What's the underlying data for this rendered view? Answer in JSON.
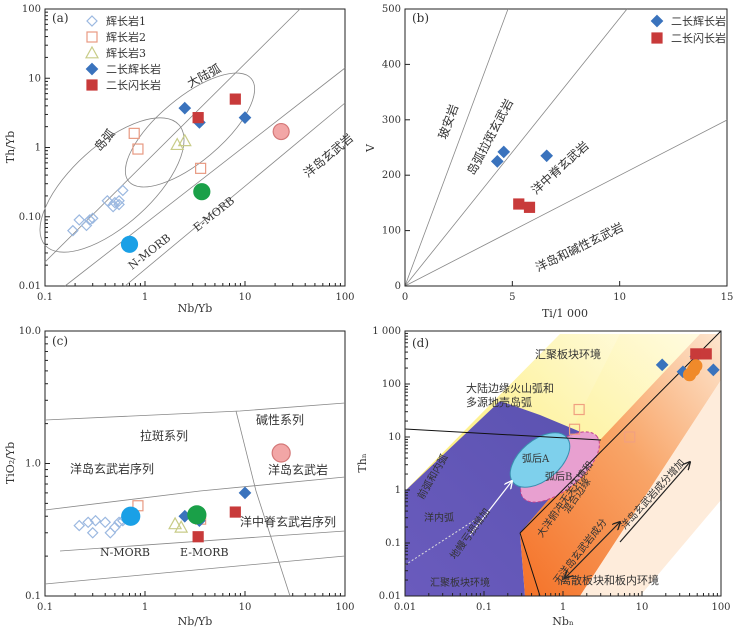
{
  "chart_data": [
    {
      "type": "scatter",
      "panel": "(a)",
      "xlabel": "Nb/Yb",
      "ylabel": "Th/Yb",
      "log_x": true,
      "log_y": true,
      "xlim": [
        0.1,
        100
      ],
      "ylim": [
        0.01,
        100
      ],
      "x_ticks": [
        "0.1",
        "1",
        "10",
        "100"
      ],
      "y_ticks": [
        "0.01",
        "0.10",
        "1",
        "10",
        "100"
      ],
      "legend": [
        "辉长岩1",
        "辉长岩2",
        "辉长岩3",
        "二长辉长岩",
        "二长闪长岩"
      ],
      "annotations": [
        "岛弧",
        "大陆弧",
        "洋岛玄武岩",
        "E-MORB",
        "N-MORB"
      ],
      "series": [
        {
          "name": "辉长岩1",
          "points": [
            [
              0.19,
              0.063
            ],
            [
              0.22,
              0.09
            ],
            [
              0.26,
              0.075
            ],
            [
              0.28,
              0.09
            ],
            [
              0.3,
              0.095
            ],
            [
              0.42,
              0.17
            ],
            [
              0.5,
              0.16
            ],
            [
              0.48,
              0.14
            ],
            [
              0.55,
              0.17
            ],
            [
              0.6,
              0.24
            ],
            [
              0.55,
              0.15
            ]
          ]
        },
        {
          "name": "辉长岩2",
          "points": [
            [
              0.78,
              1.6
            ],
            [
              0.85,
              0.95
            ],
            [
              3.6,
              0.5
            ]
          ]
        },
        {
          "name": "辉长岩3",
          "points": [
            [
              2.1,
              1.1
            ],
            [
              2.5,
              1.25
            ]
          ]
        },
        {
          "name": "二长辉长岩",
          "points": [
            [
              2.5,
              3.7
            ],
            [
              3.5,
              2.3
            ],
            [
              10,
              2.7
            ]
          ]
        },
        {
          "name": "二长闪长岩",
          "points": [
            [
              3.4,
              2.7
            ],
            [
              8,
              5
            ]
          ]
        },
        {
          "name": "N-MORB",
          "points": [
            [
              0.7,
              0.04
            ]
          ]
        },
        {
          "name": "E-MORB",
          "points": [
            [
              3.7,
              0.23
            ]
          ]
        },
        {
          "name": "洋岛玄武岩",
          "points": [
            [
              23,
              1.7
            ]
          ]
        }
      ]
    },
    {
      "type": "scatter",
      "panel": "(b)",
      "xlabel": "Ti/1 000",
      "ylabel": "V",
      "xlim": [
        0,
        15
      ],
      "ylim": [
        0,
        500
      ],
      "x_ticks": [
        "0",
        "5",
        "10",
        "15"
      ],
      "y_ticks": [
        "0",
        "100",
        "200",
        "300",
        "400",
        "500"
      ],
      "legend": [
        "二长辉长岩",
        "二长闪长岩"
      ],
      "annotations": [
        "玻安岩",
        "岛弧拉斑玄武岩",
        "洋中脊玄武岩",
        "洋岛和碱性玄武岩"
      ],
      "series": [
        {
          "name": "二长辉长岩",
          "points": [
            [
              4.3,
              225
            ],
            [
              4.6,
              242
            ],
            [
              6.6,
              235
            ]
          ]
        },
        {
          "name": "二长闪长岩",
          "points": [
            [
              5.3,
              148
            ],
            [
              5.8,
              142
            ]
          ]
        }
      ]
    },
    {
      "type": "scatter",
      "panel": "(c)",
      "xlabel": "Nb/Yb",
      "ylabel": "TiO₂/Yb",
      "log_x": true,
      "log_y": true,
      "xlim": [
        0.1,
        100
      ],
      "ylim": [
        0.1,
        10
      ],
      "x_ticks": [
        "0.1",
        "1",
        "10",
        "100"
      ],
      "y_ticks": [
        "0.1",
        "1.0",
        "10.0"
      ],
      "annotations": [
        "碱性系列",
        "拉斑系列",
        "洋岛玄武岩序列",
        "洋岛玄武岩",
        "洋中脊玄武岩序列",
        "N-MORB",
        "E-MORB"
      ],
      "series": [
        {
          "name": "辉长岩1",
          "points": [
            [
              0.22,
              0.34
            ],
            [
              0.27,
              0.36
            ],
            [
              0.3,
              0.3
            ],
            [
              0.32,
              0.37
            ],
            [
              0.4,
              0.36
            ],
            [
              0.45,
              0.3
            ],
            [
              0.5,
              0.33
            ],
            [
              0.6,
              0.37
            ],
            [
              0.55,
              0.36
            ]
          ]
        },
        {
          "name": "辉长岩2",
          "points": [
            [
              0.85,
              0.48
            ],
            [
              3.6,
              0.38
            ]
          ]
        },
        {
          "name": "辉长岩3",
          "points": [
            [
              2.0,
              0.35
            ],
            [
              2.3,
              0.33
            ]
          ]
        },
        {
          "name": "二长辉长岩",
          "points": [
            [
              2.5,
              0.4
            ],
            [
              3.5,
              0.37
            ],
            [
              10,
              0.6
            ]
          ]
        },
        {
          "name": "二长闪长岩",
          "points": [
            [
              3.4,
              0.28
            ],
            [
              8,
              0.43
            ]
          ]
        },
        {
          "name": "N-MORB",
          "points": [
            [
              0.72,
              0.4
            ]
          ]
        },
        {
          "name": "E-MORB",
          "points": [
            [
              3.3,
              0.41
            ]
          ]
        },
        {
          "name": "洋岛玄武岩",
          "points": [
            [
              23,
              1.2
            ]
          ]
        }
      ]
    },
    {
      "type": "scatter",
      "panel": "(d)",
      "xlabel": "Nbₙ",
      "ylabel": "Thₙ",
      "log_x": true,
      "log_y": true,
      "xlim": [
        0.01,
        100
      ],
      "ylim": [
        0.01,
        1000
      ],
      "x_ticks": [
        "0.01",
        "0.1",
        "1",
        "10",
        "100"
      ],
      "y_ticks": [
        "0.01",
        "0.1",
        "1",
        "10",
        "100",
        "1 000"
      ],
      "annotations": [
        "汇聚板块环境",
        "大陆边缘火山弧和",
        "多源地壳岛弧",
        "弧后A",
        "弧后B",
        "前弧和内弧",
        "洋内弧",
        "地幔亏损增加",
        "汇聚板块环境",
        "大洋俯冲无关环境和",
        "混合边缘",
        "无洋岛玄武岩成分",
        "洋岛玄武岩成分增加",
        "离散板块和板内环境"
      ],
      "series": [
        {
          "name": "辉长岩2",
          "points": [
            [
              1.6,
              33
            ],
            [
              7,
              10
            ],
            [
              1.4,
              14
            ]
          ]
        },
        {
          "name": "二长辉长岩",
          "points": [
            [
              18,
              230
            ],
            [
              33,
              170
            ],
            [
              80,
              185
            ],
            [
              48,
              330
            ]
          ]
        },
        {
          "name": "二长闪长岩",
          "points": [
            [
              48,
              370
            ],
            [
              65,
              370
            ]
          ]
        },
        {
          "name": "洋岛玄武岩",
          "points": [
            [
              40,
              150
            ],
            [
              45,
              185
            ],
            [
              48,
              220
            ]
          ]
        }
      ]
    }
  ]
}
